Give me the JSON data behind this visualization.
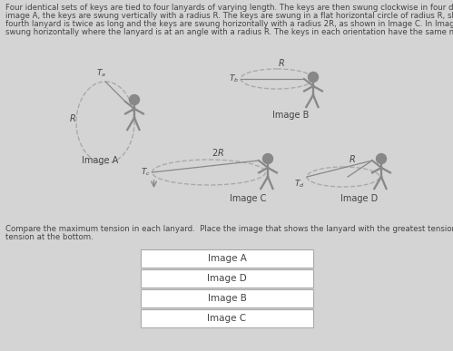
{
  "bg_color": "#d4d4d4",
  "title_text1": "Four identical sets of keys are tied to four lanyards of varying length. The keys are then swung clockwise in four different orientations. In",
  "title_text2": "image A, the keys are swung vertically with a radius R. The keys are swung in a flat horizontal circle of radius R, shown in Image B. The",
  "title_text3": "fourth lanyard is twice as long and the keys are swung horizontally with a radius 2R, as shown in Image C. In Image D, the keys are",
  "title_text4": "swung horizontally where the lanyard is at an angle with a radius R. The keys in each orientation have the same maximum velocity.",
  "compare_text1": "Compare the maximum tension in each lanyard.  Place the image that shows the lanyard with the greatest tension at the top and the least",
  "compare_text2": "tension at the bottom.",
  "answer_labels": [
    "Image A",
    "Image D",
    "Image B",
    "Image C"
  ],
  "box_color": "#ffffff",
  "box_border": "#aaaaaa",
  "text_color": "#444444",
  "figure_color": "#888888",
  "ellipse_color": "#aaaaaa"
}
